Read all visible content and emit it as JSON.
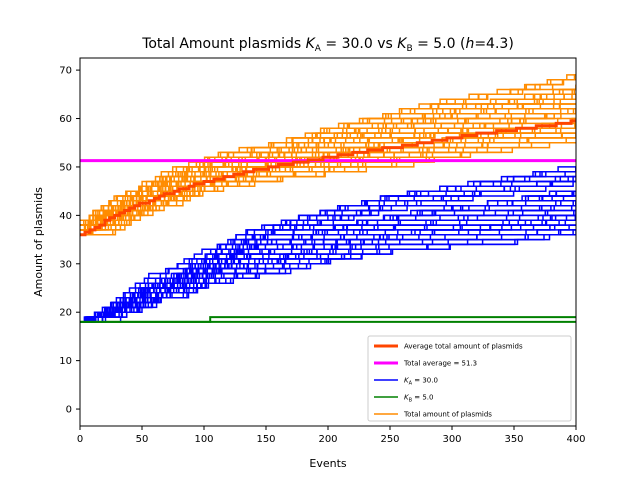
{
  "chart_data": {
    "type": "line",
    "title": {
      "prefix": "Total Amount plasmids ",
      "ka_symbol": "K",
      "ka_sub": "A",
      "ka_value": " = 30.0 vs ",
      "kb_symbol": "K",
      "kb_sub": "B",
      "kb_value": " = 5.0 (",
      "h_symbol": "h",
      "h_value": "=4.3)"
    },
    "xlabel": "Events",
    "ylabel": "Amount of plasmids",
    "xlim": [
      0,
      400
    ],
    "ylim": [
      -3.5,
      72.5
    ],
    "xticks": [
      0,
      50,
      100,
      150,
      200,
      250,
      300,
      350,
      400
    ],
    "yticks": [
      0,
      10,
      20,
      30,
      40,
      50,
      60,
      70
    ],
    "grid": false,
    "legend_position": "lower-right",
    "colors": {
      "orange": "#ff8c00",
      "blue": "#0000ff",
      "green": "#008000",
      "average": "#ff4500",
      "total_average": "#ff00ff"
    },
    "legend": [
      {
        "label": "Average total amount of plasmids",
        "color": "#ff4500",
        "width": 3
      },
      {
        "label": "Total average = 51.3",
        "color": "#ff00ff",
        "width": 3
      },
      {
        "label_symbol": "K",
        "label_sub": "A",
        "label_rest": " = 30.0",
        "color": "#0000ff",
        "width": 1.5
      },
      {
        "label_symbol": "K",
        "label_sub": "B",
        "label_rest": " = 5.0",
        "color": "#008000",
        "width": 1.5
      },
      {
        "label": "Total amount of plasmids",
        "color": "#ff8c00",
        "width": 1.5
      }
    ],
    "total_average": 51.3,
    "series": {
      "average_total": {
        "x": [
          0,
          25,
          50,
          75,
          100,
          125,
          150,
          175,
          200,
          225,
          250,
          275,
          300,
          325,
          350,
          375,
          400
        ],
        "y": [
          36,
          39.5,
          42.5,
          45,
          47,
          48.5,
          49.8,
          51,
          52,
          53,
          54,
          55,
          56,
          57,
          57.8,
          58.5,
          59.5
        ]
      },
      "green_lines": [
        {
          "x": [
            0,
            105,
            105,
            400
          ],
          "y": [
            18,
            18,
            19,
            19
          ]
        },
        {
          "x": [
            0,
            400
          ],
          "y": [
            18,
            18
          ]
        }
      ],
      "blue_envelope": {
        "x": [
          0,
          25,
          50,
          75,
          100,
          150,
          200,
          250,
          300,
          350,
          400
        ],
        "min": [
          18,
          19,
          21,
          23,
          25,
          27.5,
          30,
          32,
          33,
          34,
          36
        ],
        "max": [
          18,
          22,
          27,
          30,
          34,
          38,
          41,
          44,
          46,
          48,
          50
        ]
      },
      "orange_envelope": {
        "x": [
          0,
          25,
          50,
          75,
          100,
          150,
          200,
          250,
          300,
          350,
          400
        ],
        "min": [
          35.5,
          38,
          41,
          43,
          45,
          47,
          48.5,
          50,
          52,
          54,
          55
        ],
        "max": [
          39,
          43,
          47,
          50,
          52,
          54.5,
          58,
          61,
          64,
          66,
          69
        ]
      },
      "blue_count": 45,
      "orange_count": 45
    }
  }
}
